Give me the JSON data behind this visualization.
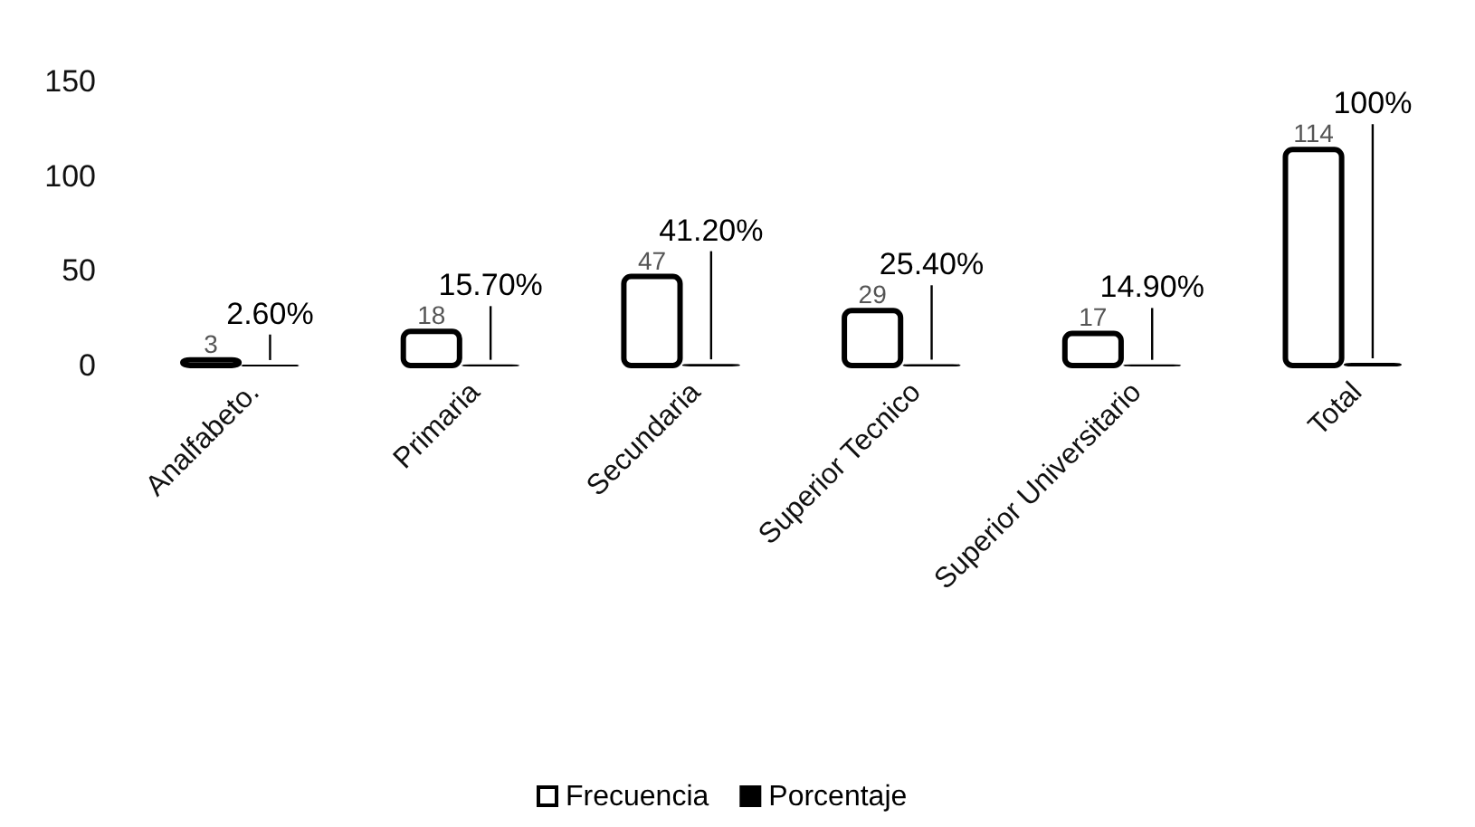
{
  "chart_data": {
    "type": "bar",
    "categories": [
      "Analfabeto.",
      "Primaria",
      "Secundaria",
      "Superior Tecnico",
      "Superior Universitario",
      "Total"
    ],
    "series": [
      {
        "name": "Frecuencia",
        "color": "#ffffff",
        "values": [
          3,
          18,
          47,
          29,
          17,
          114
        ],
        "value_labels": [
          "3",
          "18",
          "47",
          "29",
          "17",
          "114"
        ]
      },
      {
        "name": "Porcentaje",
        "color": "#000000",
        "values": [
          0.026,
          0.157,
          0.412,
          0.254,
          0.149,
          1
        ],
        "value_labels": [
          "2.60%",
          "15.70%",
          "41.20%",
          "25.40%",
          "14.90%",
          "100%"
        ]
      }
    ],
    "ylim": [
      0,
      150
    ],
    "yticks": [
      0,
      50,
      100,
      150
    ],
    "grid": false,
    "legend": "bottom"
  }
}
